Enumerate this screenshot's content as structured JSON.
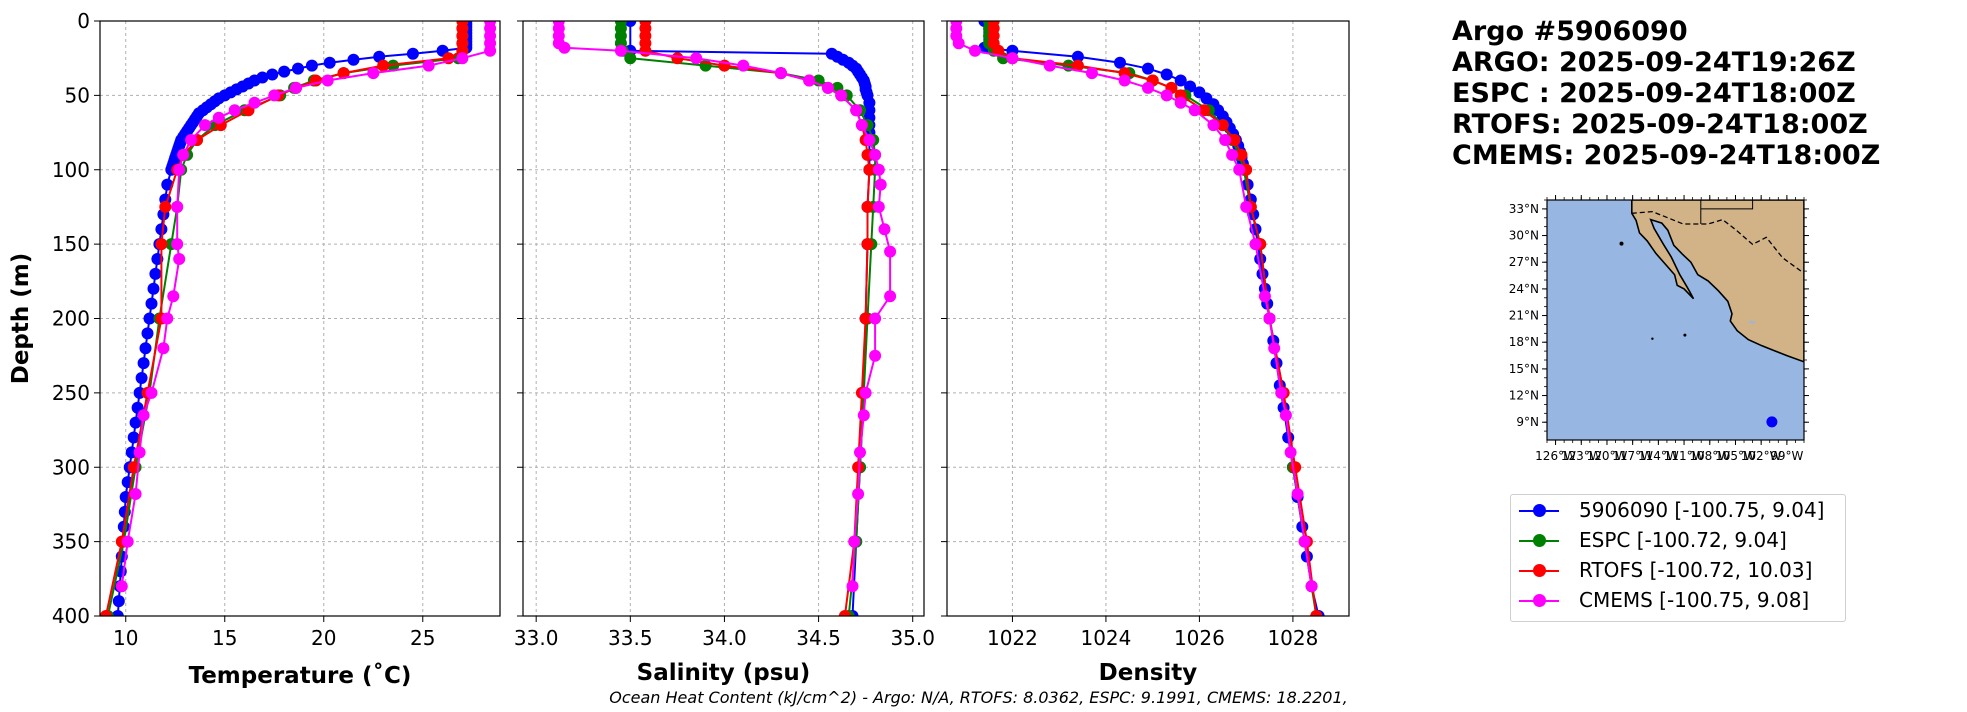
{
  "header": {
    "argo_id": "Argo #5906090",
    "argo_time": "ARGO: 2025-09-24T19:26Z",
    "espc_time": "ESPC : 2025-09-24T18:00Z",
    "rtofs_time": "RTOFS: 2025-09-24T18:00Z",
    "cmems_time": "CMEMS: 2025-09-24T18:00Z"
  },
  "caption": "Ocean Heat Content (kJ/cm^2) - Argo: N/A,  RTOFS: 8.0362,  ESPC: 9.1991,  CMEMS: 18.2201,",
  "legend": [
    {
      "label": "5906090 [-100.75, 9.04]",
      "color": "#0000ff"
    },
    {
      "label": "ESPC [-100.72, 9.04]",
      "color": "#008000"
    },
    {
      "label": "RTOFS [-100.72, 10.03]",
      "color": "#ff0000"
    },
    {
      "label": "CMEMS [-100.75, 9.08]",
      "color": "#ff00ff"
    }
  ],
  "chart_data": [
    {
      "type": "line",
      "xlabel": "Temperature (˚C)",
      "ylabel": "Depth (m)",
      "xlim": [
        8.7,
        28.9
      ],
      "ylim": [
        400,
        0
      ],
      "xticks": [
        10,
        15,
        20,
        25
      ],
      "yticks": [
        0,
        50,
        100,
        150,
        200,
        250,
        300,
        350,
        400
      ],
      "grid": true,
      "series": [
        {
          "name": "5906090",
          "color": "#0000ff",
          "depth": [
            0,
            2,
            4,
            6,
            8,
            10,
            12,
            14,
            16,
            18,
            20,
            22,
            24,
            26,
            28,
            30,
            32,
            34,
            36,
            38,
            40,
            42,
            44,
            46,
            48,
            50,
            52,
            54,
            56,
            58,
            60,
            62,
            64,
            66,
            68,
            70,
            72,
            74,
            76,
            78,
            80,
            82,
            84,
            86,
            88,
            90,
            92,
            94,
            96,
            98,
            100,
            110,
            120,
            130,
            140,
            150,
            160,
            170,
            180,
            190,
            200,
            210,
            220,
            230,
            240,
            250,
            260,
            270,
            280,
            290,
            300,
            310,
            320,
            330,
            340,
            350,
            360,
            370,
            380,
            390,
            400
          ],
          "values": [
            27.2,
            27.2,
            27.2,
            27.2,
            27.2,
            27.2,
            27.2,
            27.2,
            27.2,
            27.2,
            26.0,
            24.5,
            22.8,
            21.5,
            20.3,
            19.4,
            18.7,
            18.0,
            17.4,
            16.9,
            16.5,
            16.2,
            15.9,
            15.6,
            15.3,
            15.0,
            14.7,
            14.5,
            14.3,
            14.1,
            13.9,
            13.7,
            13.6,
            13.5,
            13.4,
            13.3,
            13.2,
            13.1,
            13.0,
            12.9,
            12.8,
            12.75,
            12.7,
            12.65,
            12.6,
            12.55,
            12.5,
            12.45,
            12.4,
            12.35,
            12.3,
            12.1,
            12.0,
            11.9,
            11.8,
            11.7,
            11.6,
            11.5,
            11.4,
            11.3,
            11.2,
            11.1,
            11.0,
            10.9,
            10.8,
            10.7,
            10.6,
            10.5,
            10.4,
            10.3,
            10.2,
            10.1,
            10.0,
            9.95,
            9.9,
            9.85,
            9.8,
            9.75,
            9.7,
            9.65,
            9.6
          ]
        },
        {
          "name": "ESPC",
          "color": "#008000",
          "depth": [
            0,
            5,
            10,
            15,
            20,
            25,
            30,
            35,
            40,
            45,
            50,
            60,
            70,
            80,
            90,
            100,
            125,
            150,
            200,
            250,
            300,
            350,
            400
          ],
          "values": [
            27.0,
            27.0,
            27.0,
            27.0,
            27.0,
            26.8,
            23.5,
            21.0,
            19.5,
            18.5,
            17.8,
            16.0,
            14.5,
            13.6,
            13.1,
            12.8,
            12.6,
            12.3,
            11.7,
            11.2,
            10.5,
            9.9,
            9.1
          ]
        },
        {
          "name": "RTOFS",
          "color": "#ff0000",
          "depth": [
            0,
            5,
            10,
            15,
            20,
            25,
            30,
            35,
            40,
            45,
            50,
            60,
            70,
            80,
            90,
            100,
            125,
            150,
            200,
            250,
            300,
            350,
            400
          ],
          "values": [
            27.0,
            27.0,
            27.0,
            27.0,
            27.0,
            26.3,
            23.0,
            21.0,
            19.6,
            18.6,
            17.7,
            16.2,
            14.8,
            13.6,
            12.9,
            12.6,
            12.0,
            11.8,
            11.8,
            11.1,
            10.4,
            9.8,
            9.0
          ]
        },
        {
          "name": "CMEMS",
          "color": "#ff00ff",
          "depth": [
            0,
            5,
            10,
            15,
            20,
            25,
            30,
            35,
            40,
            45,
            50,
            55,
            60,
            65,
            70,
            80,
            90,
            100,
            125,
            150,
            160,
            185,
            200,
            220,
            250,
            265,
            290,
            318,
            350,
            380
          ],
          "values": [
            28.4,
            28.4,
            28.4,
            28.4,
            28.4,
            27.0,
            25.3,
            22.5,
            20.2,
            18.6,
            17.5,
            16.5,
            15.5,
            14.7,
            14.0,
            13.3,
            12.9,
            12.7,
            12.6,
            12.6,
            12.7,
            12.4,
            12.1,
            11.9,
            11.3,
            10.9,
            10.7,
            10.5,
            10.1,
            9.8
          ]
        }
      ]
    },
    {
      "type": "line",
      "xlabel": "Salinity (psu)",
      "ylabel": "",
      "xlim": [
        32.93,
        35.06
      ],
      "ylim": [
        400,
        0
      ],
      "xticks": [
        33.0,
        33.5,
        34.0,
        34.5,
        35.0
      ],
      "grid": true,
      "series": [
        {
          "name": "5906090",
          "color": "#0000ff",
          "depth": [
            0,
            20,
            22,
            24,
            26,
            28,
            30,
            32,
            34,
            36,
            38,
            40,
            42,
            44,
            46,
            48,
            50,
            55,
            60,
            65,
            70,
            75,
            80,
            90,
            100,
            125,
            150,
            200,
            250,
            300,
            350,
            400
          ],
          "values": [
            33.5,
            33.5,
            34.57,
            34.6,
            34.63,
            34.66,
            34.68,
            34.7,
            34.71,
            34.72,
            34.73,
            34.74,
            34.745,
            34.75,
            34.75,
            34.755,
            34.76,
            34.77,
            34.77,
            34.77,
            34.77,
            34.77,
            34.77,
            34.77,
            34.77,
            34.76,
            34.76,
            34.75,
            34.74,
            34.72,
            34.7,
            34.68
          ]
        },
        {
          "name": "ESPC",
          "color": "#008000",
          "depth": [
            0,
            5,
            10,
            15,
            20,
            25,
            30,
            35,
            40,
            45,
            50,
            60,
            70,
            80,
            90,
            100,
            125,
            150,
            200,
            250,
            300,
            350,
            400
          ],
          "values": [
            33.45,
            33.45,
            33.45,
            33.45,
            33.46,
            33.5,
            33.9,
            34.3,
            34.5,
            34.6,
            34.65,
            34.72,
            34.76,
            34.79,
            34.8,
            34.8,
            34.79,
            34.78,
            34.76,
            34.74,
            34.72,
            34.7,
            34.66
          ]
        },
        {
          "name": "RTOFS",
          "color": "#ff0000",
          "depth": [
            0,
            5,
            10,
            15,
            20,
            25,
            30,
            35,
            40,
            45,
            50,
            60,
            70,
            80,
            90,
            100,
            125,
            150,
            200,
            250,
            300,
            350,
            400
          ],
          "values": [
            33.58,
            33.58,
            33.58,
            33.58,
            33.58,
            33.75,
            34.0,
            34.3,
            34.45,
            34.55,
            34.62,
            34.7,
            34.73,
            34.75,
            34.76,
            34.77,
            34.76,
            34.76,
            34.75,
            34.73,
            34.71,
            34.69,
            34.64
          ]
        },
        {
          "name": "CMEMS",
          "color": "#ff00ff",
          "depth": [
            0,
            5,
            10,
            15,
            18,
            20,
            25,
            30,
            35,
            40,
            45,
            50,
            60,
            70,
            80,
            90,
            100,
            110,
            125,
            140,
            155,
            185,
            200,
            225,
            250,
            265,
            290,
            318,
            350,
            380
          ],
          "values": [
            33.12,
            33.12,
            33.12,
            33.12,
            33.15,
            33.45,
            33.85,
            34.1,
            34.3,
            34.45,
            34.55,
            34.62,
            34.7,
            34.73,
            34.77,
            34.8,
            34.82,
            34.83,
            34.82,
            34.85,
            34.88,
            34.88,
            34.8,
            34.8,
            34.75,
            34.74,
            34.72,
            34.71,
            34.69,
            34.68
          ]
        }
      ]
    },
    {
      "type": "line",
      "xlabel": "Density",
      "ylabel": "",
      "xlim": [
        1020.6,
        1029.2
      ],
      "ylim": [
        400,
        0
      ],
      "xticks": [
        1022,
        1024,
        1026,
        1028
      ],
      "grid": true,
      "series": [
        {
          "name": "5906090",
          "color": "#0000ff",
          "depth": [
            0,
            18,
            20,
            24,
            28,
            32,
            36,
            40,
            44,
            48,
            52,
            56,
            60,
            64,
            68,
            72,
            76,
            80,
            84,
            88,
            92,
            96,
            100,
            110,
            120,
            130,
            140,
            150,
            160,
            170,
            180,
            190,
            200,
            215,
            230,
            245,
            260,
            280,
            300,
            320,
            340,
            360,
            380,
            400
          ],
          "values": [
            1021.4,
            1021.4,
            1022.0,
            1023.4,
            1024.3,
            1024.9,
            1025.3,
            1025.6,
            1025.8,
            1026.0,
            1026.15,
            1026.3,
            1026.4,
            1026.5,
            1026.58,
            1026.65,
            1026.72,
            1026.78,
            1026.83,
            1026.87,
            1026.9,
            1026.93,
            1026.96,
            1027.03,
            1027.1,
            1027.15,
            1027.2,
            1027.25,
            1027.3,
            1027.35,
            1027.4,
            1027.45,
            1027.5,
            1027.58,
            1027.65,
            1027.72,
            1027.8,
            1027.9,
            1028.0,
            1028.1,
            1028.2,
            1028.3,
            1028.4,
            1028.55
          ]
        },
        {
          "name": "ESPC",
          "color": "#008000",
          "depth": [
            0,
            5,
            10,
            15,
            20,
            25,
            30,
            35,
            40,
            45,
            50,
            60,
            70,
            80,
            90,
            100,
            125,
            150,
            200,
            250,
            300,
            350,
            400
          ],
          "values": [
            1021.5,
            1021.5,
            1021.5,
            1021.5,
            1021.6,
            1021.8,
            1023.2,
            1024.5,
            1025.0,
            1025.4,
            1025.7,
            1026.2,
            1026.5,
            1026.7,
            1026.85,
            1026.95,
            1027.1,
            1027.3,
            1027.5,
            1027.8,
            1028.0,
            1028.25,
            1028.5
          ]
        },
        {
          "name": "RTOFS",
          "color": "#ff0000",
          "depth": [
            0,
            5,
            10,
            15,
            20,
            25,
            30,
            35,
            40,
            45,
            50,
            60,
            70,
            80,
            90,
            100,
            125,
            150,
            200,
            250,
            300,
            350,
            400
          ],
          "values": [
            1021.6,
            1021.6,
            1021.6,
            1021.6,
            1021.7,
            1022.0,
            1023.4,
            1024.4,
            1025.0,
            1025.4,
            1025.6,
            1026.1,
            1026.5,
            1026.75,
            1026.9,
            1027.0,
            1027.1,
            1027.3,
            1027.5,
            1027.8,
            1028.05,
            1028.3,
            1028.5
          ]
        },
        {
          "name": "CMEMS",
          "color": "#ff00ff",
          "depth": [
            0,
            5,
            10,
            15,
            20,
            25,
            30,
            35,
            40,
            45,
            50,
            55,
            60,
            70,
            80,
            90,
            100,
            125,
            150,
            185,
            200,
            220,
            250,
            265,
            290,
            318,
            350,
            380
          ],
          "values": [
            1020.8,
            1020.8,
            1020.8,
            1020.85,
            1021.2,
            1022.0,
            1022.8,
            1023.7,
            1024.4,
            1024.9,
            1025.3,
            1025.6,
            1025.9,
            1026.3,
            1026.55,
            1026.7,
            1026.85,
            1027.0,
            1027.2,
            1027.4,
            1027.5,
            1027.6,
            1027.75,
            1027.85,
            1027.95,
            1028.1,
            1028.25,
            1028.4
          ]
        }
      ]
    }
  ],
  "map": {
    "lat_labels": [
      "33°N",
      "30°N",
      "27°N",
      "24°N",
      "21°N",
      "18°N",
      "15°N",
      "12°N",
      "9°N"
    ],
    "lon_labels": [
      "126°W",
      "123°W",
      "120°W",
      "117°W",
      "114°W",
      "111°W",
      "108°W",
      "105°W",
      "102°W",
      "99°W"
    ],
    "ocean_color": "#97b6e1",
    "land_color": "#d1b387",
    "marker_color": "#0000ff"
  }
}
